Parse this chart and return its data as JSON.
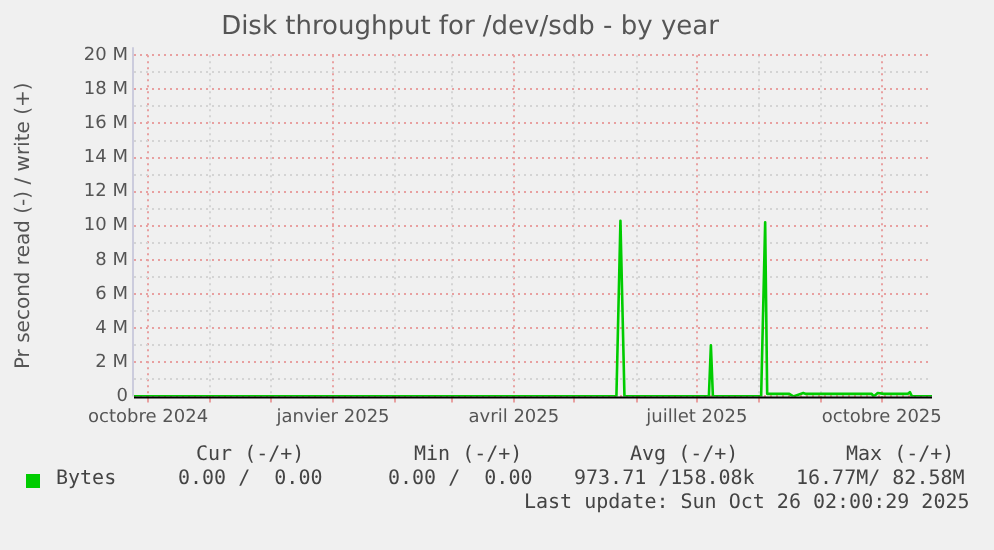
{
  "chart_data": {
    "type": "line",
    "title": "Disk throughput for /dev/sdb - by year",
    "ylabel": "Pr second read (-) / write (+)",
    "x": [
      "2024-09-24",
      "2025-05-22",
      "2025-05-24",
      "2025-05-26",
      "2025-07-07",
      "2025-07-08",
      "2025-07-09",
      "2025-08-02",
      "2025-08-04",
      "2025-08-05",
      "2025-08-16",
      "2025-08-18",
      "2025-08-23",
      "2025-08-24",
      "2025-09-26",
      "2025-09-27",
      "2025-09-29",
      "2025-10-02",
      "2025-10-14",
      "2025-10-15",
      "2025-10-16",
      "2025-10-26"
    ],
    "series": [
      {
        "name": "Bytes",
        "color": "#00cc00",
        "values": [
          0,
          0,
          10300000,
          0,
          0,
          3000000,
          0,
          0,
          10200000,
          150000,
          150000,
          0,
          200000,
          150000,
          150000,
          0,
          200000,
          150000,
          150000,
          250000,
          0,
          0
        ]
      }
    ],
    "xlim": [
      "2024-09-24",
      "2025-10-26"
    ],
    "xticks": [
      {
        "value": "2024-10-01",
        "label": "octobre 2024"
      },
      {
        "value": "2024-11-01",
        "label": null
      },
      {
        "value": "2024-12-01",
        "label": null
      },
      {
        "value": "2025-01-01",
        "label": "janvier 2025"
      },
      {
        "value": "2025-02-01",
        "label": null
      },
      {
        "value": "2025-03-01",
        "label": null
      },
      {
        "value": "2025-04-01",
        "label": "avril 2025"
      },
      {
        "value": "2025-05-01",
        "label": null
      },
      {
        "value": "2025-06-01",
        "label": null
      },
      {
        "value": "2025-07-01",
        "label": "juillet 2025"
      },
      {
        "value": "2025-08-01",
        "label": null
      },
      {
        "value": "2025-09-01",
        "label": null
      },
      {
        "value": "2025-10-01",
        "label": "octobre 2025"
      }
    ],
    "ylim": [
      0,
      20000000
    ],
    "yticks": [
      0,
      {
        "value": 1000000,
        "label": null
      },
      {
        "value": 2000000,
        "label": "2 M"
      },
      {
        "value": 3000000,
        "label": null
      },
      {
        "value": 4000000,
        "label": "4 M"
      },
      {
        "value": 5000000,
        "label": null
      },
      {
        "value": 6000000,
        "label": "6 M"
      },
      {
        "value": 7000000,
        "label": null
      },
      {
        "value": 8000000,
        "label": "8 M"
      },
      {
        "value": 9000000,
        "label": null
      },
      {
        "value": 10000000,
        "label": "10 M"
      },
      {
        "value": 11000000,
        "label": null
      },
      {
        "value": 12000000,
        "label": "12 M"
      },
      {
        "value": 13000000,
        "label": null
      },
      {
        "value": 14000000,
        "label": "14 M"
      },
      {
        "value": 15000000,
        "label": null
      },
      {
        "value": 16000000,
        "label": "16 M"
      },
      {
        "value": 17000000,
        "label": null
      },
      {
        "value": 18000000,
        "label": "18 M"
      },
      {
        "value": 19000000,
        "label": null
      },
      {
        "value": 20000000,
        "label": "20 M"
      }
    ],
    "grid": true,
    "legend": "bottom",
    "marker": "none",
    "line_style": "solid",
    "annotations": [
      "Cur (-/+)",
      "Min (-/+)",
      "Avg (-/+)",
      "Max (-/+)",
      "0.00 /  0.00",
      "0.00 /  0.00",
      "973.71 /158.08k",
      "16.77M/ 82.58M",
      "Last update: Sun Oct 26 02:00:29 2025"
    ]
  }
}
